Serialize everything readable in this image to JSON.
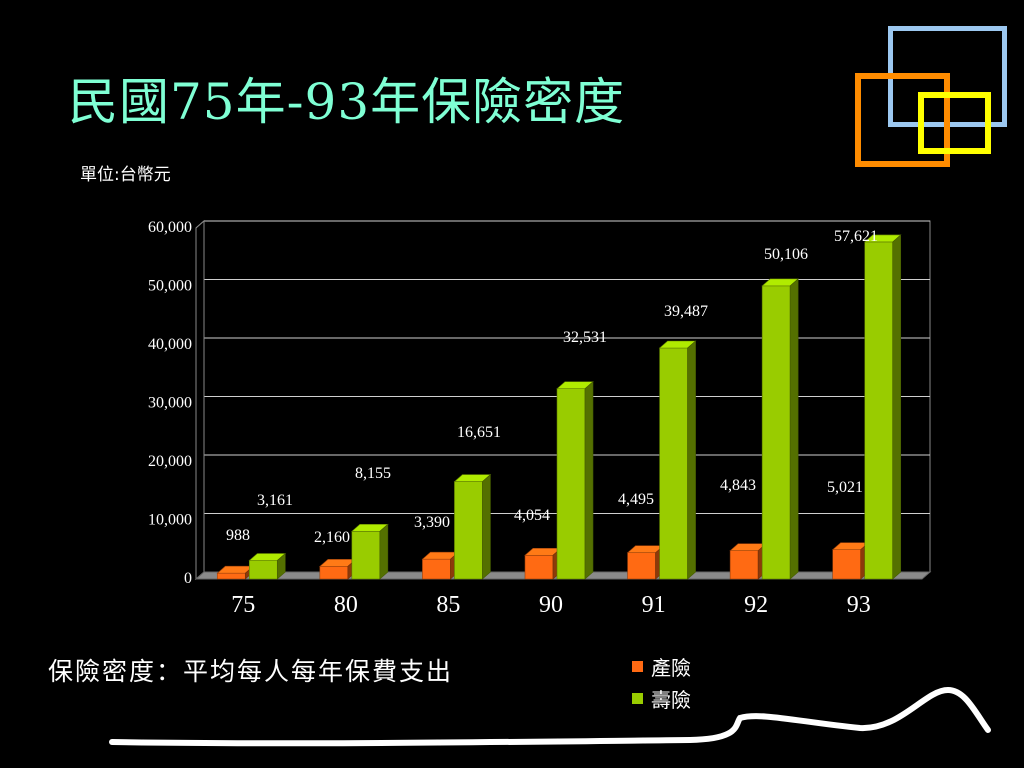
{
  "slide": {
    "title": "民國75年-93年保險密度",
    "unit": "單位:台幣元",
    "note": "保險密度：平均每人每年保費支出"
  },
  "legend": {
    "items": [
      {
        "label": "產險",
        "color": "#ff6a13"
      },
      {
        "label": "壽險",
        "color": "#99cc00"
      }
    ]
  },
  "chart_data": {
    "type": "bar",
    "categories": [
      "75",
      "80",
      "85",
      "90",
      "91",
      "92",
      "93"
    ],
    "series": [
      {
        "name": "產險",
        "values": [
          988,
          2160,
          3390,
          4054,
          4495,
          4843,
          5021
        ],
        "color": "#ff6a13"
      },
      {
        "name": "壽險",
        "values": [
          3161,
          8155,
          16651,
          32531,
          39487,
          50106,
          57621
        ],
        "color": "#99cc00"
      }
    ],
    "data_labels": {
      "產險": [
        "988",
        "2,160",
        "3,390",
        "4,054",
        "4,495",
        "4,843",
        "5,021"
      ],
      "壽險": [
        "3,161",
        "8,155",
        "16,651",
        "32,531",
        "39,487",
        "50,106",
        "57,621"
      ]
    },
    "y_ticks": [
      "0",
      "10,000",
      "20,000",
      "30,000",
      "40,000",
      "50,000",
      "60,000"
    ],
    "ylim": [
      0,
      60000
    ],
    "grid": true,
    "legend_position": "bottom-right",
    "three_d": true
  }
}
